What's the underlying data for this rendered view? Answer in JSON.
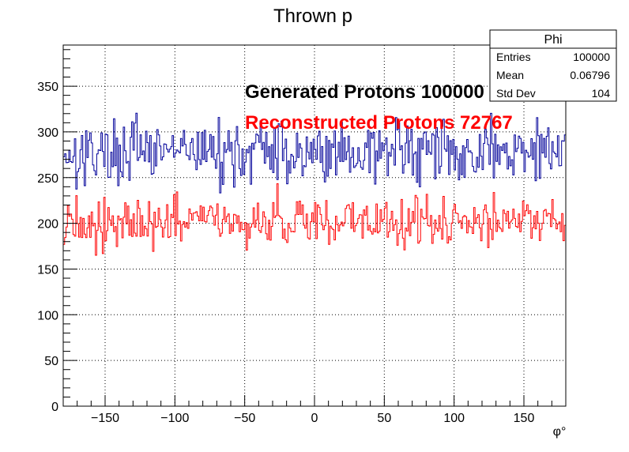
{
  "chart_data": {
    "type": "histogram",
    "title": "Thrown p",
    "xlabel": "φ°",
    "ylabel": "",
    "xlim": [
      -180,
      180
    ],
    "ylim": [
      0,
      395
    ],
    "grid": true,
    "xticks": [
      -150,
      -100,
      -50,
      0,
      50,
      100,
      150
    ],
    "yticks": [
      0,
      50,
      100,
      150,
      200,
      250,
      300,
      350
    ],
    "nbins": 360,
    "series": [
      {
        "name": "",
        "color": "#000099",
        "mean_level": 278,
        "spread": 17,
        "seed": 17
      },
      {
        "name": "",
        "color": "#ff0000",
        "mean_level": 202,
        "spread": 14,
        "seed": 91
      }
    ],
    "annotations": [
      {
        "text": "Generated Protons 100000",
        "color": "#000000"
      },
      {
        "text": "Reconstructed Protons 72767",
        "color": "#ff0000"
      }
    ],
    "stats_box": {
      "title": "Phi",
      "rows": [
        {
          "label": "Entries",
          "value": "100000"
        },
        {
          "label": "Mean",
          "value": "0.06796"
        },
        {
          "label": "Std Dev",
          "value": "104"
        }
      ]
    }
  }
}
